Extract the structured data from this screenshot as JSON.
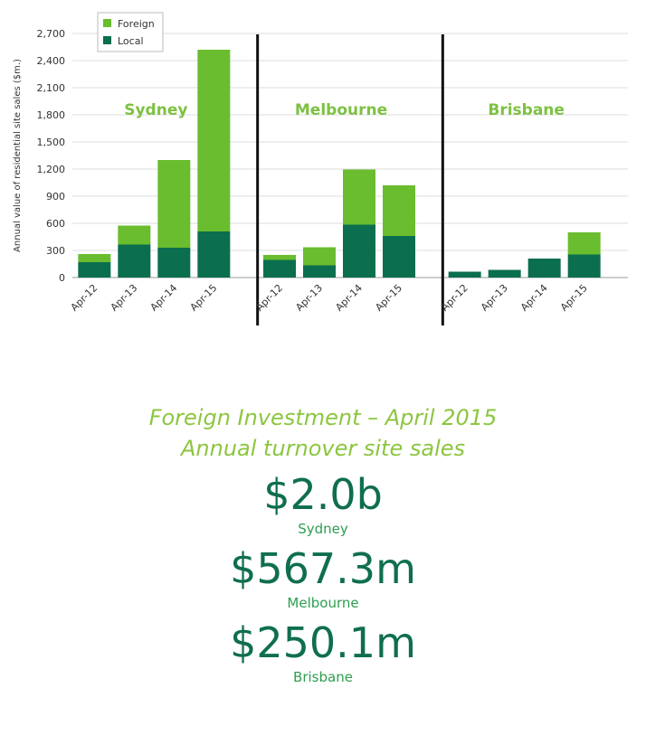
{
  "chart_data": {
    "type": "bar",
    "stacked": true,
    "ylabel": "Annual value of residential site sales ($m.)",
    "yticks": [
      0,
      300,
      600,
      900,
      1200,
      1500,
      1800,
      2100,
      2400,
      2700
    ],
    "ytick_labels": [
      "0",
      "300",
      "600",
      "900",
      "1,200",
      "1,500",
      "1,800",
      "2,100",
      "2,400",
      "2,700"
    ],
    "ylim": [
      0,
      2700
    ],
    "grid": true,
    "legend": {
      "placement": "top-left",
      "entries": [
        {
          "name": "Foreign",
          "color": "#6abd2e"
        },
        {
          "name": "Local",
          "color": "#0b6e4f"
        }
      ]
    },
    "panels": [
      {
        "name": "Sydney",
        "categories": [
          "Apr-12",
          "Apr-13",
          "Apr-14",
          "Apr-15"
        ],
        "series": [
          {
            "name": "Local",
            "values": [
              170,
              365,
              330,
              510
            ]
          },
          {
            "name": "Foreign",
            "values": [
              90,
              210,
              970,
              2010
            ]
          }
        ]
      },
      {
        "name": "Melbourne",
        "categories": [
          "Apr-12",
          "Apr-13",
          "Apr-14",
          "Apr-15"
        ],
        "series": [
          {
            "name": "Local",
            "values": [
              195,
              135,
              585,
              460
            ]
          },
          {
            "name": "Foreign",
            "values": [
              55,
              200,
              610,
              560
            ]
          }
        ]
      },
      {
        "name": "Brisbane",
        "categories": [
          "Apr-12",
          "Apr-13",
          "Apr-14",
          "Apr-15"
        ],
        "series": [
          {
            "name": "Local",
            "values": [
              65,
              85,
              210,
              255
            ]
          },
          {
            "name": "Foreign",
            "values": [
              0,
              0,
              0,
              245
            ]
          }
        ]
      }
    ]
  },
  "summary": {
    "title_line1": "Foreign Investment – April 2015",
    "title_line2": "Annual turnover site sales",
    "items": [
      {
        "value": "$2.0b",
        "label": "Sydney"
      },
      {
        "value": "$567.3m",
        "label": "Melbourne"
      },
      {
        "value": "$250.1m",
        "label": "Brisbane"
      }
    ]
  }
}
